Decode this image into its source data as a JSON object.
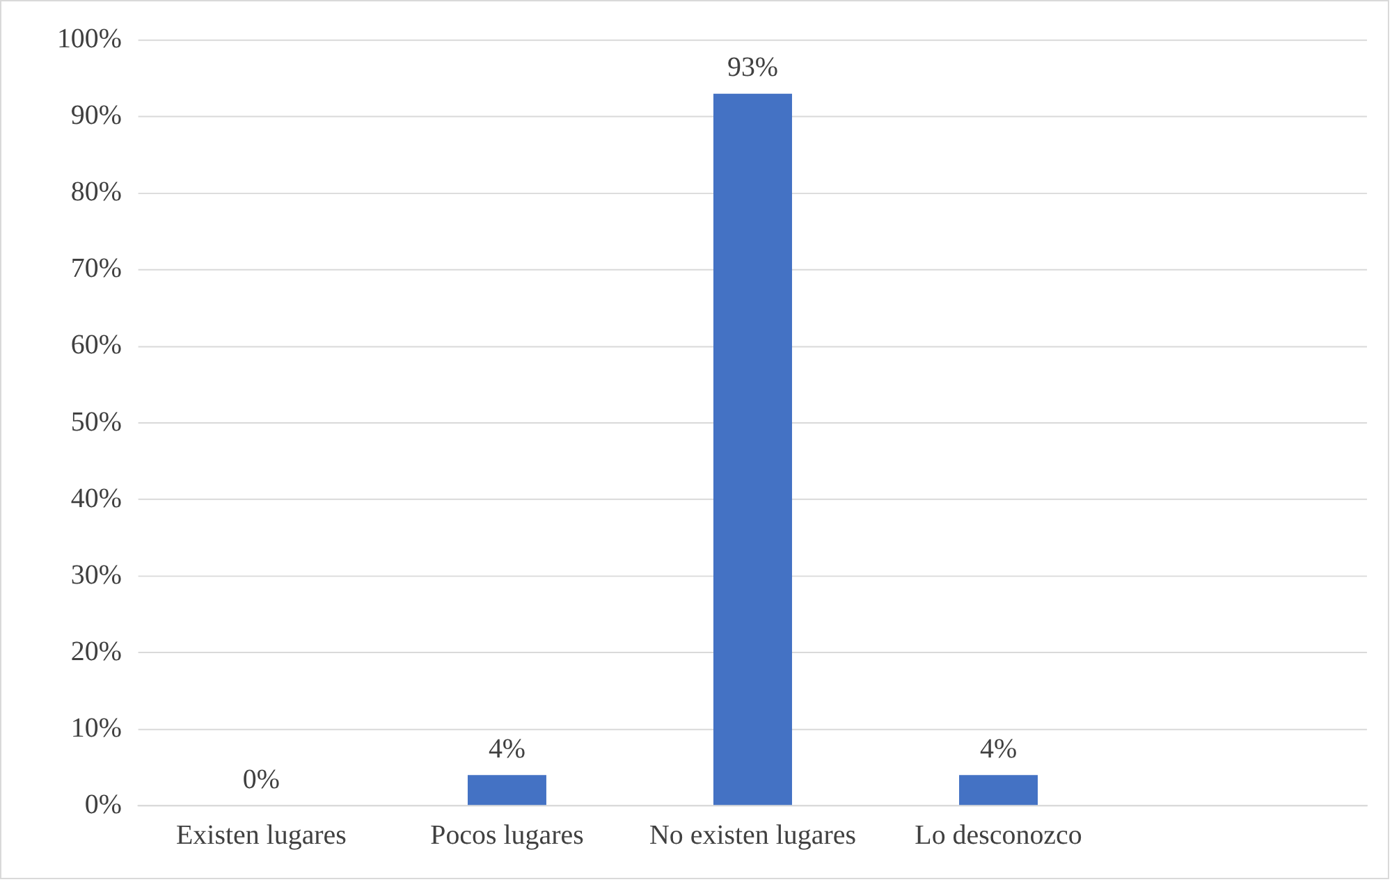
{
  "chart_data": {
    "type": "bar",
    "categories": [
      "Existen lugares",
      "Pocos lugares",
      "No existen lugares",
      "Lo desconozco",
      null
    ],
    "values": [
      0,
      4,
      93,
      4,
      null
    ],
    "color": "#4472c4",
    "value_labels": [
      "0%",
      "4%",
      "93%",
      "4%",
      null
    ],
    "ylim": [
      0,
      100
    ],
    "yticks": [
      {
        "value": 0,
        "label": "0%"
      },
      {
        "value": 10,
        "label": "10%"
      },
      {
        "value": 20,
        "label": "20%"
      },
      {
        "value": 30,
        "label": "30%"
      },
      {
        "value": 40,
        "label": "40%"
      },
      {
        "value": 50,
        "label": "50%"
      },
      {
        "value": 60,
        "label": "60%"
      },
      {
        "value": 70,
        "label": "70%"
      },
      {
        "value": 80,
        "label": "80%"
      },
      {
        "value": 90,
        "label": "90%"
      },
      {
        "value": 100,
        "label": "100%"
      }
    ],
    "grid": "y",
    "legend": false
  }
}
